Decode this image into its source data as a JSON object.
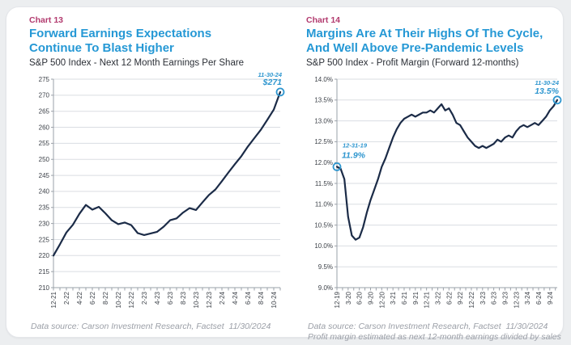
{
  "colors": {
    "page_bg": "#eceef0",
    "card_bg": "#ffffff",
    "chart_label_pink": "#b23a6e",
    "title_blue": "#2598d5",
    "subtitle_dark": "#2b2f36",
    "line_navy": "#1b2b47",
    "annotation_blue": "#2e96cf",
    "grid_gray": "#dadde2",
    "axis_gray": "#9aa0a8",
    "footer_gray": "#9b9fa7"
  },
  "charts": [
    {
      "chart_label": "Chart 13",
      "title_lines": [
        "Forward Earnings Expectations",
        "Continue To Blast Higher"
      ],
      "subtitle": "S&P 500 Index - Next 12 Month Earnings Per Share",
      "source_lines": [
        "Data source: Carson Investment Research, Factset  11/30/2024"
      ],
      "chart_data": {
        "type": "line",
        "title": "Forward Earnings Expectations Continue To Blast Higher",
        "subtitle": "S&P 500 Index - Next 12 Month Earnings Per Share",
        "xlabel": "",
        "ylabel": "",
        "ylim": [
          210,
          275
        ],
        "ytick_step": 5,
        "ytick_format": "int",
        "grid": true,
        "legend": "none",
        "x_labels": [
          "12-21",
          "2-22",
          "4-22",
          "6-22",
          "8-22",
          "10-22",
          "12-22",
          "2-23",
          "4-23",
          "6-23",
          "8-23",
          "10-23",
          "12-23",
          "2-24",
          "4-24",
          "6-24",
          "8-24",
          "10-24"
        ],
        "label_every": 2,
        "categories": [
          "12-21",
          "1-22",
          "2-22",
          "3-22",
          "4-22",
          "5-22",
          "6-22",
          "7-22",
          "8-22",
          "9-22",
          "10-22",
          "11-22",
          "12-22",
          "1-23",
          "2-23",
          "3-23",
          "4-23",
          "5-23",
          "6-23",
          "7-23",
          "8-23",
          "9-23",
          "10-23",
          "11-23",
          "12-23",
          "1-24",
          "2-24",
          "3-24",
          "4-24",
          "5-24",
          "6-24",
          "7-24",
          "8-24",
          "9-24",
          "10-24",
          "11-24"
        ],
        "values": [
          220.0,
          223.5,
          227.2,
          229.6,
          233.0,
          235.8,
          234.3,
          235.2,
          233.2,
          231.0,
          229.8,
          230.3,
          229.5,
          227.0,
          226.4,
          226.9,
          227.4,
          229.0,
          231.0,
          231.6,
          233.4,
          234.8,
          234.2,
          236.6,
          238.9,
          240.6,
          243.2,
          245.9,
          248.5,
          251.0,
          254.0,
          256.6,
          259.2,
          262.3,
          265.5,
          271.0
        ],
        "annotations": [
          {
            "index": 35,
            "date": "11-30-24",
            "value": "$271",
            "anchor": "end",
            "dx_date": 2,
            "dy_date": -19,
            "dx_value": 2,
            "dy_value": -9
          }
        ],
        "layout": {
          "ml": 36,
          "mr": 8,
          "mt": 12,
          "plot_bottom": 270
        }
      }
    },
    {
      "chart_label": "Chart 14",
      "title_lines": [
        "Margins Are At Their Highs Of The Cycle,",
        "And Well Above Pre-Pandemic Levels"
      ],
      "subtitle": "S&P 500 Index - Profit Margin (Forward 12-months)",
      "source_lines": [
        "Data source: Carson Investment Research, Factset  11/30/2024",
        "Profit margin estimated as next 12-month earnings divided by sales"
      ],
      "chart_data": {
        "type": "line",
        "title": "Margins Are At Their Highs Of The Cycle, And Well Above Pre-Pandemic Levels",
        "subtitle": "S&P 500 Index - Profit Margin (Forward 12-months)",
        "xlabel": "",
        "ylabel": "",
        "ylim": [
          9.0,
          14.0
        ],
        "ytick_step": 0.5,
        "ytick_format": "pct1",
        "grid": true,
        "legend": "none",
        "x_labels": [
          "12-19",
          "3-20",
          "6-20",
          "9-20",
          "12-20",
          "3-21",
          "6-21",
          "9-21",
          "12-21",
          "3-22",
          "6-22",
          "9-22",
          "12-22",
          "3-23",
          "6-23",
          "9-23",
          "12-23",
          "3-24",
          "6-24",
          "9-24"
        ],
        "label_every": 3,
        "categories": [
          "12-19",
          "1-20",
          "2-20",
          "3-20",
          "4-20",
          "5-20",
          "6-20",
          "7-20",
          "8-20",
          "9-20",
          "10-20",
          "11-20",
          "12-20",
          "1-21",
          "2-21",
          "3-21",
          "4-21",
          "5-21",
          "6-21",
          "7-21",
          "8-21",
          "9-21",
          "10-21",
          "11-21",
          "12-21",
          "1-22",
          "2-22",
          "3-22",
          "4-22",
          "5-22",
          "6-22",
          "7-22",
          "8-22",
          "9-22",
          "10-22",
          "11-22",
          "12-22",
          "1-23",
          "2-23",
          "3-23",
          "4-23",
          "5-23",
          "6-23",
          "7-23",
          "8-23",
          "9-23",
          "10-23",
          "11-23",
          "12-23",
          "1-24",
          "2-24",
          "3-24",
          "4-24",
          "5-24",
          "6-24",
          "7-24",
          "8-24",
          "9-24",
          "10-24",
          "11-24"
        ],
        "values": [
          11.9,
          11.85,
          11.6,
          10.7,
          10.25,
          10.15,
          10.2,
          10.45,
          10.8,
          11.1,
          11.35,
          11.6,
          11.9,
          12.1,
          12.35,
          12.6,
          12.8,
          12.95,
          13.05,
          13.1,
          13.15,
          13.1,
          13.15,
          13.2,
          13.2,
          13.25,
          13.2,
          13.3,
          13.4,
          13.25,
          13.3,
          13.15,
          12.95,
          12.9,
          12.75,
          12.6,
          12.5,
          12.4,
          12.35,
          12.4,
          12.35,
          12.4,
          12.45,
          12.55,
          12.5,
          12.6,
          12.65,
          12.6,
          12.75,
          12.85,
          12.9,
          12.85,
          12.9,
          12.95,
          12.9,
          13.0,
          13.1,
          13.25,
          13.35,
          13.5
        ],
        "annotations": [
          {
            "index": 0,
            "date": "12-31-19",
            "value": "11.9%",
            "anchor": "start",
            "dx_date": 7,
            "dy_date": -24,
            "dx_value": 6,
            "dy_value": -11
          },
          {
            "index": 59,
            "date": "11-30-24",
            "value": "13.5%",
            "anchor": "end",
            "dx_date": 2,
            "dy_date": -19,
            "dx_value": 2,
            "dy_value": -8
          }
        ],
        "layout": {
          "ml": 44,
          "mr": 8,
          "mt": 12,
          "plot_bottom": 270
        }
      }
    }
  ]
}
